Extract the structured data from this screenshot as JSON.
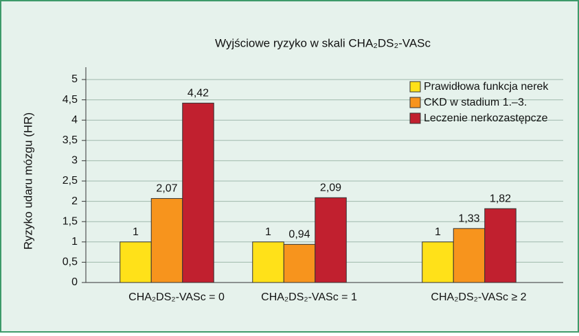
{
  "chart_data": {
    "type": "bar",
    "title": "Wyjściowe ryzyko w skali CHA₂DS₂-VASc",
    "ylabel": "Ryzyko udaru mózgu (HR)",
    "categories": [
      "CHA₂DS₂-VASc = 0",
      "CHA₂DS₂-VASc = 1",
      "CHA₂DS₂-VASc ≥ 2"
    ],
    "series": [
      {
        "name": "Prawidłowa funkcja nerek",
        "color": "#ffe119",
        "values": [
          1,
          1,
          1
        ],
        "value_labels": [
          "1",
          "1",
          "1"
        ]
      },
      {
        "name": "CKD w stadium 1.–3.",
        "color": "#f7941d",
        "values": [
          2.07,
          0.94,
          1.33
        ],
        "value_labels": [
          "2,07",
          "0,94",
          "1,33"
        ]
      },
      {
        "name": "Leczenie nerkozastępcze",
        "color": "#c1202f",
        "values": [
          4.42,
          2.09,
          1.82
        ],
        "value_labels": [
          "4,42",
          "2,09",
          "1,82"
        ]
      }
    ],
    "ylim": [
      0,
      5
    ],
    "yticks": [
      0,
      {
        "value": 0.5,
        "label": "0,5"
      },
      1,
      {
        "value": 1.5,
        "label": "1,5"
      },
      2,
      {
        "value": 2.5,
        "label": "2,5"
      },
      3,
      {
        "value": 3.5,
        "label": "3,5"
      },
      4,
      {
        "value": 4.5,
        "label": "4,5"
      },
      5
    ],
    "grid": true,
    "legend": "top-right"
  }
}
